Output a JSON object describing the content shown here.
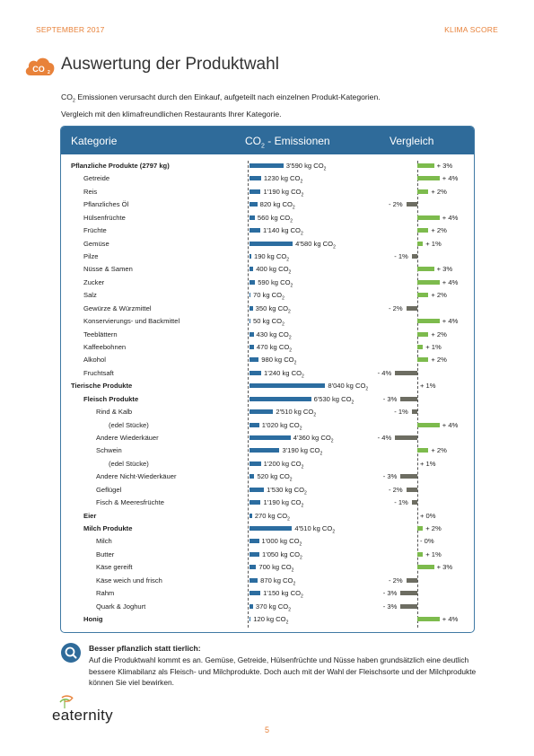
{
  "header": {
    "left": "SEPTEMBER 2017",
    "right": "KLIMA SCORE"
  },
  "badge": {
    "text": "CO2",
    "color": "#e8823a"
  },
  "title": "Auswertung der Produktwahl",
  "intro": {
    "line1_prefix": "CO",
    "line1_sub": "2",
    "line1_rest": " Emissionen verursacht durch den Einkauf, aufgeteilt nach einzelnen Produkt-Kategorien.",
    "line2": "Vergleich mit den klimafreundlichen Restaurants Ihrer Kategorie."
  },
  "table_header": {
    "kategorie": "Kategorie",
    "emissionen_prefix": "CO",
    "emissionen_sub": "2",
    "emissionen_rest": " - Emissionen",
    "vergleich": "Vergleich"
  },
  "colors": {
    "emission_bar": "#2c6da0",
    "positive": "#7dbb4d",
    "negative": "#6d6d62",
    "header_bg": "#2f6b9a",
    "accent": "#e8823a"
  },
  "rows": [
    {
      "label": "Pflanzliche Produkte (2797 kg)",
      "level": 0,
      "bold": true,
      "emission": "3'590 kg CO",
      "emission_kg": 3590,
      "vergleich": "+ 3%",
      "pct": 3
    },
    {
      "label": "Getreide",
      "level": 1,
      "bold": false,
      "emission": "1230 kg CO",
      "emission_kg": 1230,
      "vergleich": "+ 4%",
      "pct": 4
    },
    {
      "label": "Reis",
      "level": 1,
      "bold": false,
      "emission": "1'190 kg CO",
      "emission_kg": 1190,
      "vergleich": "+ 2%",
      "pct": 2
    },
    {
      "label": "Pflanzliches Öl",
      "level": 1,
      "bold": false,
      "emission": "820 kg CO",
      "emission_kg": 820,
      "vergleich": "- 2%",
      "pct": -2
    },
    {
      "label": "Hülsenfrüchte",
      "level": 1,
      "bold": false,
      "emission": "560 kg CO",
      "emission_kg": 560,
      "vergleich": "+ 4%",
      "pct": 4
    },
    {
      "label": "Früchte",
      "level": 1,
      "bold": false,
      "emission": "1'140 kg CO",
      "emission_kg": 1140,
      "vergleich": "+ 2%",
      "pct": 2
    },
    {
      "label": "Gemüse",
      "level": 1,
      "bold": false,
      "emission": "4'580 kg CO",
      "emission_kg": 4580,
      "vergleich": "+ 1%",
      "pct": 1
    },
    {
      "label": "Pilze",
      "level": 1,
      "bold": false,
      "emission": "190 kg CO",
      "emission_kg": 190,
      "vergleich": "- 1%",
      "pct": -1
    },
    {
      "label": "Nüsse & Samen",
      "level": 1,
      "bold": false,
      "emission": "400 kg CO",
      "emission_kg": 400,
      "vergleich": "+ 3%",
      "pct": 3
    },
    {
      "label": "Zucker",
      "level": 1,
      "bold": false,
      "emission": "590 kg CO",
      "emission_kg": 590,
      "vergleich": "+ 4%",
      "pct": 4
    },
    {
      "label": "Salz",
      "level": 1,
      "bold": false,
      "emission": "70 kg CO",
      "emission_kg": 70,
      "vergleich": "+ 2%",
      "pct": 2
    },
    {
      "label": "Gewürze & Würzmittel",
      "level": 1,
      "bold": false,
      "emission": "350 kg CO",
      "emission_kg": 350,
      "vergleich": "- 2%",
      "pct": -2
    },
    {
      "label": "Konservierungs- und Backmittel",
      "level": 1,
      "bold": false,
      "emission": "50 kg CO",
      "emission_kg": 50,
      "vergleich": "+ 4%",
      "pct": 4
    },
    {
      "label": "Teeblättern",
      "level": 1,
      "bold": false,
      "emission": "430 kg CO",
      "emission_kg": 430,
      "vergleich": "+ 2%",
      "pct": 2
    },
    {
      "label": "Kaffeebohnen",
      "level": 1,
      "bold": false,
      "emission": "470 kg CO",
      "emission_kg": 470,
      "vergleich": "+ 1%",
      "pct": 1
    },
    {
      "label": "Alkohol",
      "level": 1,
      "bold": false,
      "emission": "980 kg CO",
      "emission_kg": 980,
      "vergleich": "+ 2%",
      "pct": 2
    },
    {
      "label": "Fruchtsaft",
      "level": 1,
      "bold": false,
      "emission": "1'240 kg CO",
      "emission_kg": 1240,
      "vergleich": "- 4%",
      "pct": -4
    },
    {
      "label": "Tierische Produkte",
      "level": 0,
      "bold": true,
      "emission": "8'040 kg CO",
      "emission_kg": 8040,
      "vergleich": "+ 1%",
      "pct": 0
    },
    {
      "label": "Fleisch Produkte",
      "level": 1,
      "bold": true,
      "emission": "6'530 kg CO",
      "emission_kg": 6530,
      "vergleich": "- 3%",
      "pct": -3
    },
    {
      "label": "Rind & Kalb",
      "level": 2,
      "bold": false,
      "emission": "2'510 kg CO",
      "emission_kg": 2510,
      "vergleich": "- 1%",
      "pct": -1
    },
    {
      "label": "(edel Stücke)",
      "level": 3,
      "bold": false,
      "emission": "1'020 kg CO",
      "emission_kg": 1020,
      "vergleich": "+ 4%",
      "pct": 4
    },
    {
      "label": "Andere Wiederkäuer",
      "level": 2,
      "bold": false,
      "emission": "4'360 kg CO",
      "emission_kg": 4360,
      "vergleich": "- 4%",
      "pct": -4
    },
    {
      "label": "Schwein",
      "level": 2,
      "bold": false,
      "emission": "3'190 kg CO",
      "emission_kg": 3190,
      "vergleich": "+ 2%",
      "pct": 2
    },
    {
      "label": "(edel Stücke)",
      "level": 3,
      "bold": false,
      "emission": "1'200 kg CO",
      "emission_kg": 1200,
      "vergleich": "+ 1%",
      "pct": 0
    },
    {
      "label": "Andere Nicht-Wiederkäuer",
      "level": 2,
      "bold": false,
      "emission": "520 kg CO",
      "emission_kg": 520,
      "vergleich": "- 3%",
      "pct": -3
    },
    {
      "label": "Geflügel",
      "level": 2,
      "bold": false,
      "emission": "1'530 kg CO",
      "emission_kg": 1530,
      "vergleich": "- 2%",
      "pct": -2
    },
    {
      "label": "Fisch & Meeresfrüchte",
      "level": 2,
      "bold": false,
      "emission": "1'190 kg CO",
      "emission_kg": 1190,
      "vergleich": "- 1%",
      "pct": -1
    },
    {
      "label": "Eier",
      "level": 1,
      "bold": true,
      "emission": "270 kg CO",
      "emission_kg": 270,
      "vergleich": "+ 0%",
      "pct": 0
    },
    {
      "label": "Milch Produkte",
      "level": 1,
      "bold": true,
      "emission": "4'510 kg CO",
      "emission_kg": 4510,
      "vergleich": "+ 2%",
      "pct": 1
    },
    {
      "label": "Milch",
      "level": 2,
      "bold": false,
      "emission": "1'000 kg CO",
      "emission_kg": 1000,
      "vergleich": "- 0%",
      "pct": 0
    },
    {
      "label": "Butter",
      "level": 2,
      "bold": false,
      "emission": "1'050 kg CO",
      "emission_kg": 1050,
      "vergleich": "+ 1%",
      "pct": 1
    },
    {
      "label": "Käse gereift",
      "level": 2,
      "bold": false,
      "emission": "700 kg CO",
      "emission_kg": 700,
      "vergleich": "+ 3%",
      "pct": 3
    },
    {
      "label": "Käse weich und frisch",
      "level": 2,
      "bold": false,
      "emission": "870 kg CO",
      "emission_kg": 870,
      "vergleich": "- 2%",
      "pct": -2
    },
    {
      "label": "Rahm",
      "level": 2,
      "bold": false,
      "emission": "1'150 kg CO",
      "emission_kg": 1150,
      "vergleich": "- 3%",
      "pct": -3
    },
    {
      "label": "Quark & Joghurt",
      "level": 2,
      "bold": false,
      "emission": "370 kg CO",
      "emission_kg": 370,
      "vergleich": "- 3%",
      "pct": -3
    },
    {
      "label": "Honig",
      "level": 1,
      "bold": true,
      "emission": "120 kg CO",
      "emission_kg": 120,
      "vergleich": "+ 4%",
      "pct": 4
    }
  ],
  "note": {
    "title": "Besser pflanzlich statt tierlich:",
    "text": "Auf die Produktwahl kommt es an. Gemüse, Getreide, Hülsenfrüchte und Nüsse haben grundsätzlich eine deutlich bessere Klimabilanz als Fleisch- und Milchprodukte. Doch auch mit der Wahl der Fleischsorte und der Milchprodukte können Sie viel bewirken."
  },
  "logo": {
    "word": "eaternity"
  },
  "page_number": "5"
}
